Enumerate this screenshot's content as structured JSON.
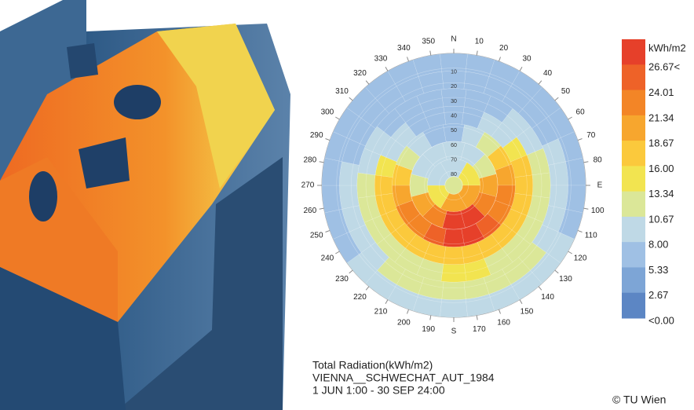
{
  "chart_data": {
    "type": "sky_radiation",
    "title": "Total Radiation(kWh/m2)",
    "subtitle": "VIENNA__SCHWECHAT_AUT_1984",
    "period": "1 JUN 1:00 - 30 SEP 24:00",
    "credit": "© TU Wien",
    "legend_title": "kWh/m2",
    "legend": [
      {
        "value": 26.67,
        "label": "26.67<",
        "color": "#e6402a"
      },
      {
        "value": 24.01,
        "label": "24.01",
        "color": "#ee6228"
      },
      {
        "value": 21.34,
        "label": "21.34",
        "color": "#f38526"
      },
      {
        "value": 18.67,
        "label": "18.67",
        "color": "#f7a62e"
      },
      {
        "value": 16,
        "label": "16.00",
        "color": "#fbc93c"
      },
      {
        "value": 13.34,
        "label": "13.34",
        "color": "#f2e450"
      },
      {
        "value": 10.67,
        "label": "10.67",
        "color": "#dbe798"
      },
      {
        "value": 8,
        "label": "8.00",
        "color": "#bfd9e6"
      },
      {
        "value": 5.33,
        "label": "5.33",
        "color": "#9fc0e4"
      },
      {
        "value": 2.67,
        "label": "2.67",
        "color": "#7da5d6"
      },
      {
        "value": 0,
        "label": "<0.00",
        "color": "#5c86c4"
      }
    ],
    "azimuth_labels": [
      {
        "value": 0,
        "label": "N"
      },
      10,
      20,
      30,
      40,
      50,
      60,
      70,
      80,
      {
        "value": 90,
        "label": "E"
      },
      100,
      110,
      120,
      130,
      140,
      150,
      160,
      170,
      {
        "value": 180,
        "label": "S"
      },
      190,
      200,
      210,
      220,
      230,
      240,
      250,
      260,
      270,
      280,
      290,
      300,
      310,
      320,
      330,
      340,
      350
    ],
    "altitude_labels": [
      10,
      20,
      30,
      40,
      50,
      60,
      70,
      80
    ],
    "sky_patches": [
      [
        5.5,
        5.5,
        5.6,
        5.8,
        6,
        6.3,
        6.6,
        7,
        7.4,
        7.8,
        8.2,
        8.5,
        8.8,
        9,
        9.1,
        9.1,
        9,
        8.8,
        8.5,
        8.2,
        7.8,
        7.4,
        7,
        6.6,
        6.3,
        6,
        5.8,
        5.6,
        5.5,
        5.5
      ],
      [
        6,
        6,
        6.2,
        6.5,
        7,
        7.6,
        8.3,
        9,
        9.6,
        10.1,
        10.5,
        10.8,
        11,
        11.2,
        11.3,
        11.3,
        11.2,
        11,
        10.8,
        10.5,
        10.1,
        9.6,
        9,
        8.3,
        7.6,
        7,
        6.5,
        6.2,
        6,
        6
      ],
      [
        6.5,
        6.8,
        7.5,
        8.8,
        10.5,
        12,
        13,
        12.5,
        12,
        12.5,
        13,
        13.5,
        13.5,
        13,
        12.5,
        12,
        12.5,
        13,
        12,
        10.5,
        8.8,
        7.5,
        6.8,
        6.5
      ],
      [
        7,
        7.5,
        8.5,
        10.5,
        14,
        17,
        18,
        17,
        16.5,
        17,
        17.5,
        18,
        18,
        17.5,
        17,
        16.5,
        17,
        18,
        17,
        14,
        10.5,
        8.5,
        7.5,
        7
      ],
      [
        7.5,
        8.5,
        11,
        16,
        20,
        22,
        24,
        25.5,
        27,
        27,
        25.5,
        24,
        22,
        20,
        16,
        11,
        8.5,
        7.5
      ],
      [
        8,
        9.5,
        13,
        19,
        24,
        27.5,
        27.5,
        24,
        19,
        13,
        9.5,
        8
      ],
      [
        9,
        14,
        21,
        21,
        14,
        9
      ],
      [
        11
      ]
    ]
  }
}
